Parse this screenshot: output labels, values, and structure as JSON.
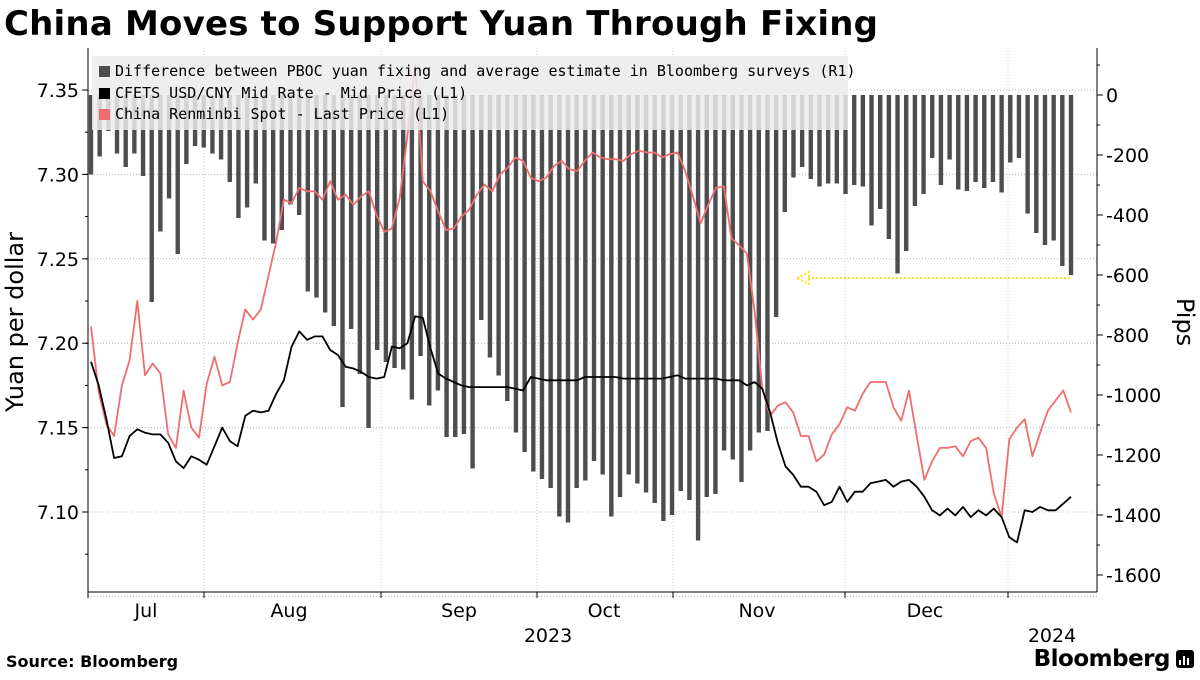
{
  "title": "China Moves to Support Yuan Through Fixing",
  "source": "Source:  Bloomberg",
  "brand": "Bloomberg",
  "brand_icon": "bloomberg-terminal-icon",
  "colors": {
    "bars": "#4d4d4d",
    "mid": "#000000",
    "spot": "#f06d6d",
    "arrow": "#f5e61a"
  },
  "chart_data": {
    "type": "bar+line",
    "ylabel": "Yuan per dollar",
    "y2label": "Pips",
    "ylim": [
      7.06,
      7.365
    ],
    "y2lim": [
      -1660,
      120
    ],
    "yticks": [
      "7.10",
      "7.15",
      "7.20",
      "7.25",
      "7.30",
      "7.35"
    ],
    "y2ticks": [
      "-1600",
      "-1400",
      "-1200",
      "-1000",
      "-800",
      "-600",
      "-400",
      "-200",
      "0"
    ],
    "xticks": [
      "Jul",
      "Aug",
      "Sep",
      "Oct",
      "Nov",
      "Dec"
    ],
    "year_labels": [
      "2023",
      "2024"
    ],
    "grid": true,
    "legend_position": "top-left",
    "series": [
      {
        "name": "Difference between PBOC yuan fixing and average estimate in Bloomberg surveys (R1)",
        "axis": "right",
        "kind": "bar",
        "values": [
          -265,
          -205,
          -120,
          -195,
          -240,
          -195,
          -270,
          -690,
          -455,
          -345,
          -530,
          -230,
          -170,
          -175,
          -195,
          -215,
          -290,
          -410,
          -375,
          -295,
          -485,
          -495,
          -450,
          -365,
          -400,
          -655,
          -675,
          -725,
          -770,
          -1040,
          -780,
          -930,
          -1110,
          -850,
          -890,
          -910,
          -915,
          -1015,
          -870,
          -1035,
          -985,
          -1140,
          -1140,
          -1130,
          -1245,
          -750,
          -875,
          -935,
          -1020,
          -1125,
          -1190,
          -1255,
          -1280,
          -1310,
          -1405,
          -1425,
          -1310,
          -1285,
          -1220,
          -1265,
          -1405,
          -1340,
          -1265,
          -1295,
          -1325,
          -1360,
          -1420,
          -1400,
          -1320,
          -1350,
          -1485,
          -1340,
          -1330,
          -1185,
          -1215,
          -1290,
          -1185,
          -1125,
          -1120,
          -740,
          -390,
          -275,
          -240,
          -280,
          -305,
          -295,
          -295,
          -330,
          -300,
          -305,
          -435,
          -380,
          -480,
          -595,
          -520,
          -370,
          -330,
          -210,
          -300,
          -215,
          -315,
          -320,
          -290,
          -310,
          -290,
          -325,
          -225,
          -210,
          -395,
          -460,
          -500,
          -485,
          -570,
          -600
        ]
      },
      {
        "name": "CFETS USD/CNY Mid Rate - Mid Price (L1)",
        "axis": "left",
        "kind": "line",
        "values": [
          7.189,
          7.175,
          7.155,
          7.132,
          7.133,
          7.145,
          7.149,
          7.147,
          7.146,
          7.146,
          7.141,
          7.13,
          7.126,
          7.133,
          7.131,
          7.128,
          7.139,
          7.15,
          7.142,
          7.139,
          7.157,
          7.16,
          7.159,
          7.16,
          7.17,
          7.178,
          7.198,
          7.207,
          7.202,
          7.204,
          7.204,
          7.196,
          7.193,
          7.186,
          7.185,
          7.183,
          7.18,
          7.179,
          7.18,
          7.198,
          7.197,
          7.2,
          7.216,
          7.215,
          7.197,
          7.182,
          7.179,
          7.177,
          7.175,
          7.174,
          7.174,
          7.174,
          7.174,
          7.174,
          7.174,
          7.173,
          7.172,
          7.18,
          7.179,
          7.178,
          7.178,
          7.178,
          7.178,
          7.178,
          7.18,
          7.18,
          7.18,
          7.18,
          7.18,
          7.179,
          7.179,
          7.179,
          7.179,
          7.179,
          7.179,
          7.18,
          7.181,
          7.179,
          7.179,
          7.179,
          7.179,
          7.179,
          7.178,
          7.178,
          7.178,
          7.175,
          7.177,
          7.173,
          7.159,
          7.141,
          7.127,
          7.122,
          7.115,
          7.115,
          7.112,
          7.104,
          7.106,
          7.115,
          7.106,
          7.112,
          7.112,
          7.117,
          7.118,
          7.119,
          7.115,
          7.118,
          7.119,
          7.115,
          7.109,
          7.101,
          7.098,
          7.102,
          7.098,
          7.103,
          7.097,
          7.101,
          7.098,
          7.102,
          7.097,
          7.085,
          7.082,
          7.101,
          7.1,
          7.103,
          7.101,
          7.101,
          7.105,
          7.109
        ]
      },
      {
        "name": "China Renminbi Spot - Last Price (L1)",
        "axis": "left",
        "kind": "line",
        "values": [
          7.21,
          7.171,
          7.152,
          7.145,
          7.175,
          7.19,
          7.225,
          7.181,
          7.188,
          7.182,
          7.146,
          7.138,
          7.172,
          7.15,
          7.144,
          7.176,
          7.192,
          7.175,
          7.177,
          7.2,
          7.22,
          7.214,
          7.22,
          7.24,
          7.26,
          7.285,
          7.283,
          7.292,
          7.29,
          7.29,
          7.285,
          7.296,
          7.285,
          7.288,
          7.282,
          7.287,
          7.29,
          7.276,
          7.266,
          7.268,
          7.286,
          7.323,
          7.365,
          7.296,
          7.29,
          7.278,
          7.267,
          7.268,
          7.275,
          7.279,
          7.288,
          7.294,
          7.29,
          7.3,
          7.304,
          7.31,
          7.308,
          7.298,
          7.296,
          7.298,
          7.305,
          7.308,
          7.303,
          7.302,
          7.308,
          7.313,
          7.31,
          7.309,
          7.309,
          7.308,
          7.312,
          7.314,
          7.313,
          7.313,
          7.31,
          7.312,
          7.313,
          7.302,
          7.287,
          7.271,
          7.282,
          7.292,
          7.293,
          7.262,
          7.258,
          7.253,
          7.219,
          7.173,
          7.157,
          7.163,
          7.165,
          7.159,
          7.145,
          7.145,
          7.13,
          7.134,
          7.146,
          7.152,
          7.162,
          7.16,
          7.17,
          7.177,
          7.177,
          7.177,
          7.162,
          7.154,
          7.172,
          7.145,
          7.119,
          7.13,
          7.138,
          7.138,
          7.139,
          7.133,
          7.142,
          7.144,
          7.138,
          7.111,
          7.097,
          7.143,
          7.15,
          7.155,
          7.133,
          7.147,
          7.16,
          7.166,
          7.172,
          7.159
        ]
      }
    ],
    "annotation": {
      "type": "arrow",
      "from_pips": -610,
      "to_pips": -610,
      "direction": "left",
      "description": ""
    }
  }
}
